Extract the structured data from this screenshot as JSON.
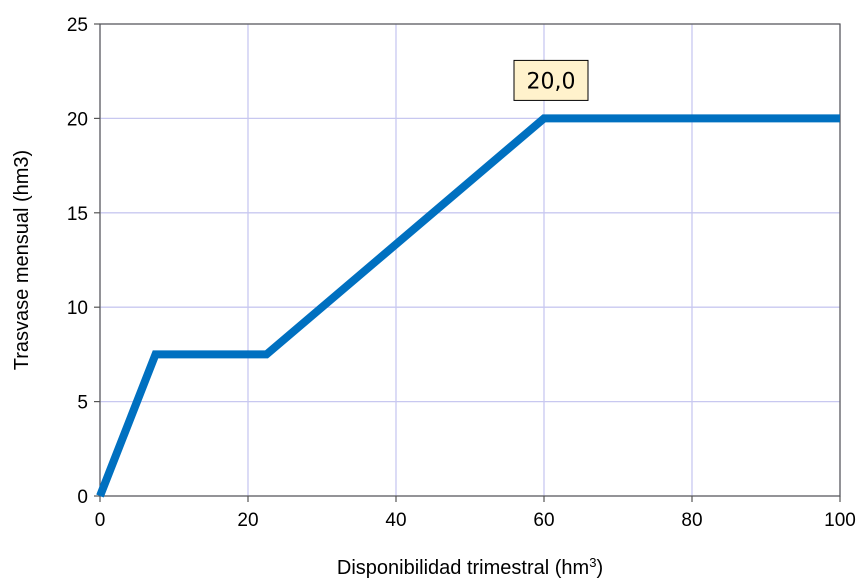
{
  "chart_data": {
    "type": "line",
    "title": "",
    "xlabel": "Disponibilidad trimestral (hm",
    "xlabel_sup": "3",
    "xlabel_close": ")",
    "ylabel": "Trasvase mensual (hm3)",
    "xlim": [
      0,
      100
    ],
    "ylim": [
      0,
      25
    ],
    "xticks": [
      0,
      20,
      40,
      60,
      80,
      100
    ],
    "xtick_labels": [
      "0",
      "20",
      "40",
      "60",
      "80",
      "100"
    ],
    "yticks": [
      0,
      5,
      10,
      15,
      20,
      25
    ],
    "ytick_labels": [
      "0",
      "5",
      "10",
      "15",
      "20",
      "25"
    ],
    "grid": true,
    "grid_color": "#c8c8f0",
    "series": [
      {
        "color": "#0070c0",
        "x": [
          0,
          7.5,
          22.5,
          60,
          100
        ],
        "y": [
          0,
          7.5,
          7.5,
          20,
          20
        ]
      }
    ],
    "annotations": [
      {
        "text": "20,0",
        "x": 60,
        "y": 20,
        "background": "#fff2cc"
      }
    ]
  }
}
